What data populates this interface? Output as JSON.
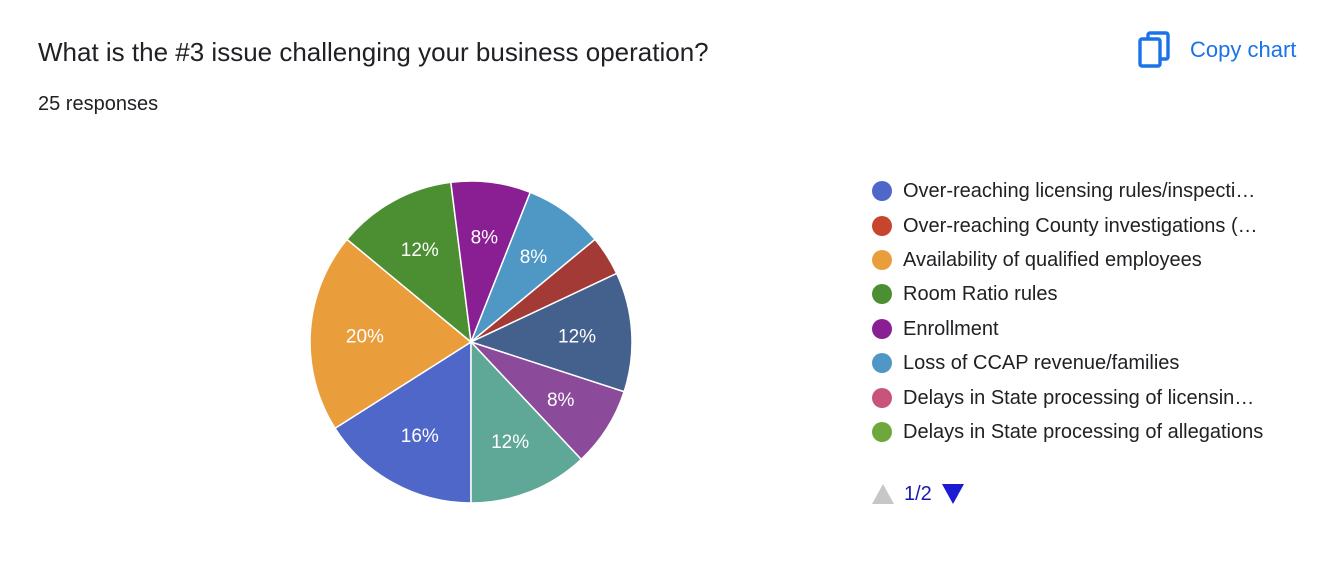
{
  "header": {
    "title": "What is the #3 issue challenging your business operation?",
    "responses": "25 responses",
    "copy_label": "Copy chart",
    "copy_icon": "copy-icon",
    "accent": "#1a73e8"
  },
  "legend": {
    "items": [
      {
        "label": "Over-reaching licensing rules/inspecti…",
        "color": "#4f67c8"
      },
      {
        "label": "Over-reaching County investigations (…",
        "color": "#c8452d"
      },
      {
        "label": "Availability of qualified employees",
        "color": "#e99e3b"
      },
      {
        "label": "Room Ratio rules",
        "color": "#4b8f32"
      },
      {
        "label": "Enrollment",
        "color": "#8a1f93"
      },
      {
        "label": "Loss of CCAP revenue/families",
        "color": "#4f97c4"
      },
      {
        "label": "Delays in State processing of licensin…",
        "color": "#c9547a"
      },
      {
        "label": "Delays in State processing of allegations",
        "color": "#6ea83a"
      }
    ],
    "pager": "1/2"
  },
  "chart_data": {
    "type": "pie",
    "title": "What is the #3 issue challenging your business operation?",
    "start_angle_deg": 90,
    "slices": [
      {
        "value": 16,
        "label": "16%",
        "color": "#4f67c8"
      },
      {
        "value": 20,
        "label": "20%",
        "color": "#e99e3b"
      },
      {
        "value": 12,
        "label": "12%",
        "color": "#4b8f32"
      },
      {
        "value": 8,
        "label": "8%",
        "color": "#8a1f93"
      },
      {
        "value": 8,
        "label": "8%",
        "color": "#4f97c4"
      },
      {
        "value": 4,
        "label": "",
        "color": "#a33a35"
      },
      {
        "value": 12,
        "label": "12%",
        "color": "#44618e"
      },
      {
        "value": 8,
        "label": "8%",
        "color": "#8b4a9a"
      },
      {
        "value": 12,
        "label": "12%",
        "color": "#5fa898"
      }
    ]
  }
}
